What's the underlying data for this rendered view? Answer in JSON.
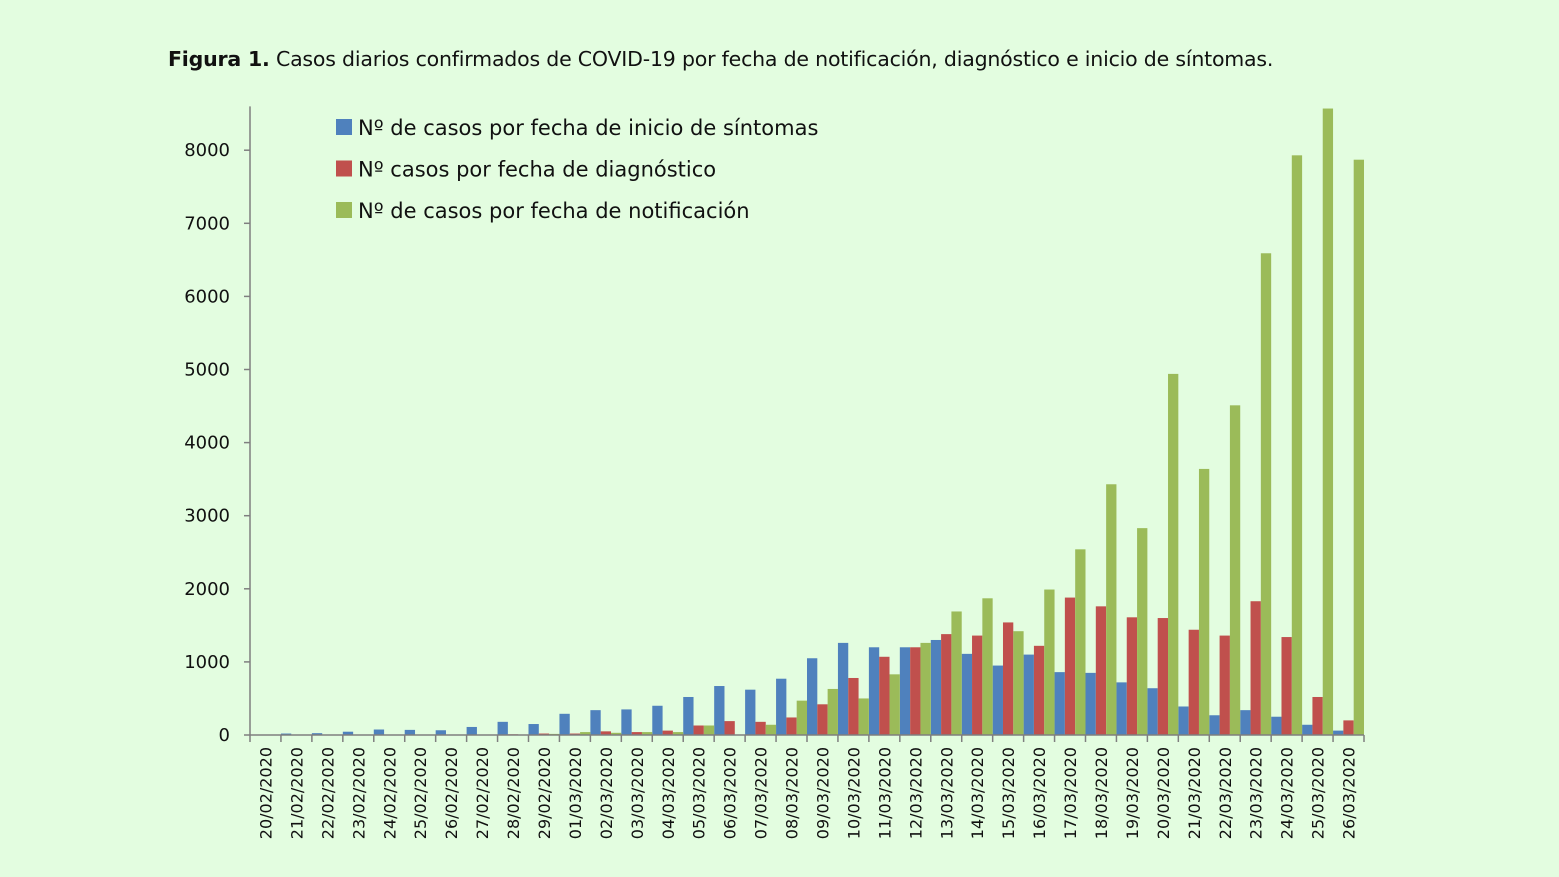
{
  "caption": {
    "label": "Figura 1.",
    "text": " Casos diarios confirmados de COVID-19 por fecha de notificación, diagnóstico e inicio de síntomas."
  },
  "chart_data": {
    "type": "bar",
    "title": "Figura 1. Casos diarios confirmados de COVID-19 por fecha de notificación, diagnóstico e inicio de síntomas.",
    "xlabel": "",
    "ylabel": "",
    "ylim": [
      0,
      8600
    ],
    "yticks": [
      0,
      1000,
      2000,
      3000,
      4000,
      5000,
      6000,
      7000,
      8000
    ],
    "grid": false,
    "legend_position": "top-left",
    "categories": [
      "20/02/2020",
      "21/02/2020",
      "22/02/2020",
      "23/02/2020",
      "24/02/2020",
      "25/02/2020",
      "26/02/2020",
      "27/02/2020",
      "28/02/2020",
      "29/02/2020",
      "01/03/2020",
      "02/03/2020",
      "03/03/2020",
      "04/03/2020",
      "05/03/2020",
      "06/03/2020",
      "07/03/2020",
      "08/03/2020",
      "09/03/2020",
      "10/03/2020",
      "11/03/2020",
      "12/03/2020",
      "13/03/2020",
      "14/03/2020",
      "15/03/2020",
      "16/03/2020",
      "17/03/2020",
      "18/03/2020",
      "19/03/2020",
      "20/03/2020",
      "21/03/2020",
      "22/03/2020",
      "23/03/2020",
      "24/03/2020",
      "25/03/2020",
      "26/03/2020"
    ],
    "series": [
      {
        "name": "Nº de casos por fecha de inicio de síntomas",
        "color": "#4f81bd",
        "values": [
          5,
          20,
          25,
          45,
          75,
          70,
          65,
          110,
          180,
          150,
          290,
          340,
          350,
          400,
          520,
          670,
          620,
          770,
          1050,
          1260,
          1200,
          1200,
          1300,
          1110,
          950,
          1100,
          860,
          850,
          720,
          640,
          390,
          270,
          340,
          250,
          140,
          60
        ]
      },
      {
        "name": "Nº casos por fecha de diagnóstico",
        "color": "#c0504d",
        "values": [
          0,
          0,
          0,
          0,
          0,
          0,
          0,
          5,
          10,
          20,
          20,
          50,
          40,
          60,
          130,
          190,
          180,
          240,
          420,
          780,
          1070,
          1200,
          1380,
          1360,
          1540,
          1220,
          1880,
          1760,
          1610,
          1600,
          1440,
          1360,
          1830,
          1340,
          520,
          200
        ]
      },
      {
        "name": "Nº de casos por fecha de notificación",
        "color": "#9bbb59",
        "values": [
          0,
          0,
          0,
          0,
          0,
          0,
          0,
          0,
          5,
          15,
          40,
          30,
          40,
          40,
          130,
          5,
          140,
          470,
          630,
          500,
          830,
          1260,
          1690,
          1870,
          1420,
          1990,
          2540,
          3430,
          2830,
          4940,
          3640,
          4510,
          6590,
          7930,
          8570,
          7870
        ]
      }
    ]
  }
}
